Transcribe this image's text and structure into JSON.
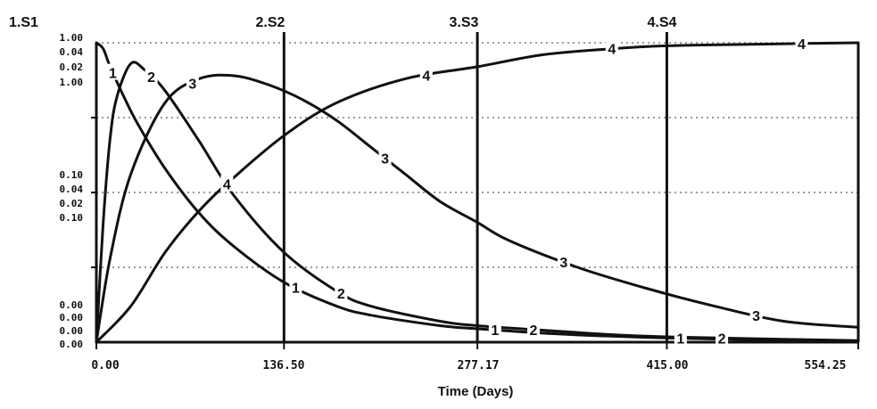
{
  "chart_data": {
    "type": "line",
    "xlabel": "Time (Days)",
    "x_ticks": [
      "0.00",
      "136.50",
      "277.17",
      "415.00",
      "554.25"
    ],
    "xlim": [
      0,
      554.25
    ],
    "grid": true,
    "series_headers": [
      "1.S1",
      "2.S2",
      "3.S3",
      "4.S4"
    ],
    "y_scale_labels": {
      "top": [
        "1.00",
        "0.04",
        "0.02",
        "1.00"
      ],
      "middle": [
        "0.10",
        "0.04",
        "0.02",
        "0.10"
      ],
      "bottom": [
        "0.00",
        "0.00",
        "0.00",
        "0.00"
      ]
    },
    "series": [
      {
        "name": "1",
        "x": [
          0,
          5,
          10,
          20,
          30,
          50,
          75,
          100,
          136.5,
          175,
          200,
          250,
          277.17,
          325,
          375,
          415,
          475,
          554.25
        ],
        "y": [
          1.0,
          0.98,
          0.92,
          0.82,
          0.73,
          0.58,
          0.43,
          0.32,
          0.2,
          0.12,
          0.09,
          0.055,
          0.045,
          0.03,
          0.02,
          0.014,
          0.008,
          0.004
        ]
      },
      {
        "name": "2",
        "x": [
          0,
          5,
          10,
          15,
          25,
          35,
          50,
          75,
          100,
          136.5,
          175,
          200,
          250,
          277.17,
          325,
          375,
          415,
          475,
          554.25
        ],
        "y": [
          0.0,
          0.4,
          0.68,
          0.82,
          0.93,
          0.91,
          0.84,
          0.67,
          0.49,
          0.3,
          0.17,
          0.12,
          0.07,
          0.055,
          0.04,
          0.025,
          0.018,
          0.012,
          0.005
        ]
      },
      {
        "name": "3",
        "x": [
          0,
          10,
          25,
          50,
          75,
          100,
          125,
          150,
          175,
          200,
          225,
          250,
          277.17,
          300,
          350,
          400,
          450,
          500,
          554.25
        ],
        "y": [
          0.0,
          0.28,
          0.56,
          0.8,
          0.88,
          0.89,
          0.86,
          0.81,
          0.74,
          0.65,
          0.56,
          0.47,
          0.4,
          0.34,
          0.25,
          0.18,
          0.12,
          0.07,
          0.05
        ]
      },
      {
        "name": "4",
        "x": [
          0,
          25,
          50,
          75,
          100,
          136.5,
          175,
          225,
          277.17,
          325,
          375,
          415,
          475,
          554.25
        ],
        "y": [
          0.0,
          0.12,
          0.3,
          0.44,
          0.55,
          0.69,
          0.8,
          0.88,
          0.92,
          0.96,
          0.98,
          0.99,
          0.995,
          1.0
        ]
      }
    ],
    "markers": [
      {
        "series": "1",
        "x": [
          12,
          145,
          290,
          425
        ]
      },
      {
        "series": "2",
        "x": [
          40,
          178,
          318,
          455
        ]
      },
      {
        "series": "3",
        "x": [
          70,
          210,
          340,
          480
        ]
      },
      {
        "series": "4",
        "x": [
          95,
          240,
          375,
          513
        ]
      }
    ]
  }
}
